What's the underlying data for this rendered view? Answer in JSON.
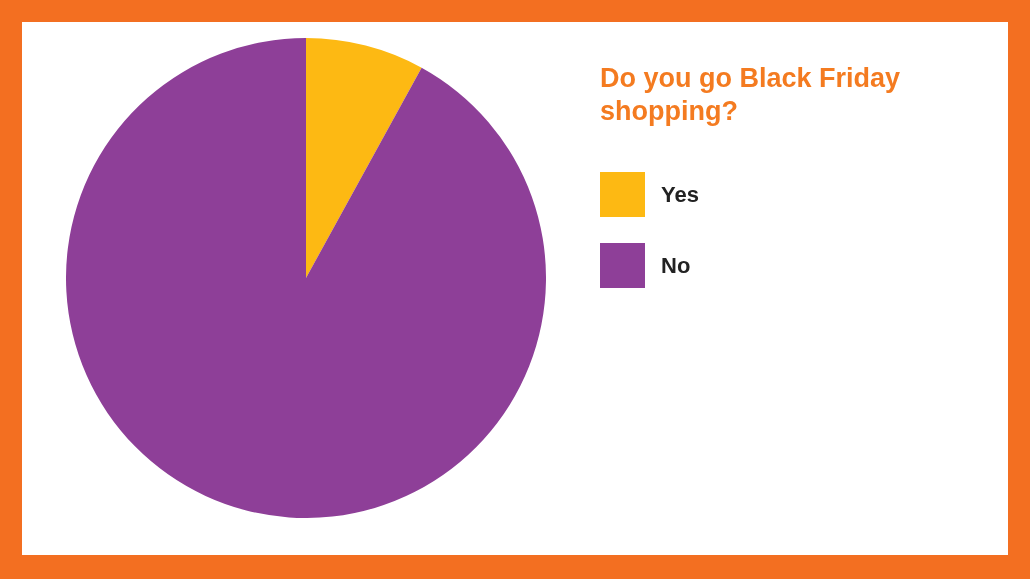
{
  "chart_data": {
    "type": "pie",
    "title": "Do you go Black Friday shopping?",
    "categories": [
      "Yes",
      "No"
    ],
    "values": [
      8,
      92
    ],
    "colors": [
      "#fdb913",
      "#8e3f98"
    ],
    "legend": "right"
  }
}
